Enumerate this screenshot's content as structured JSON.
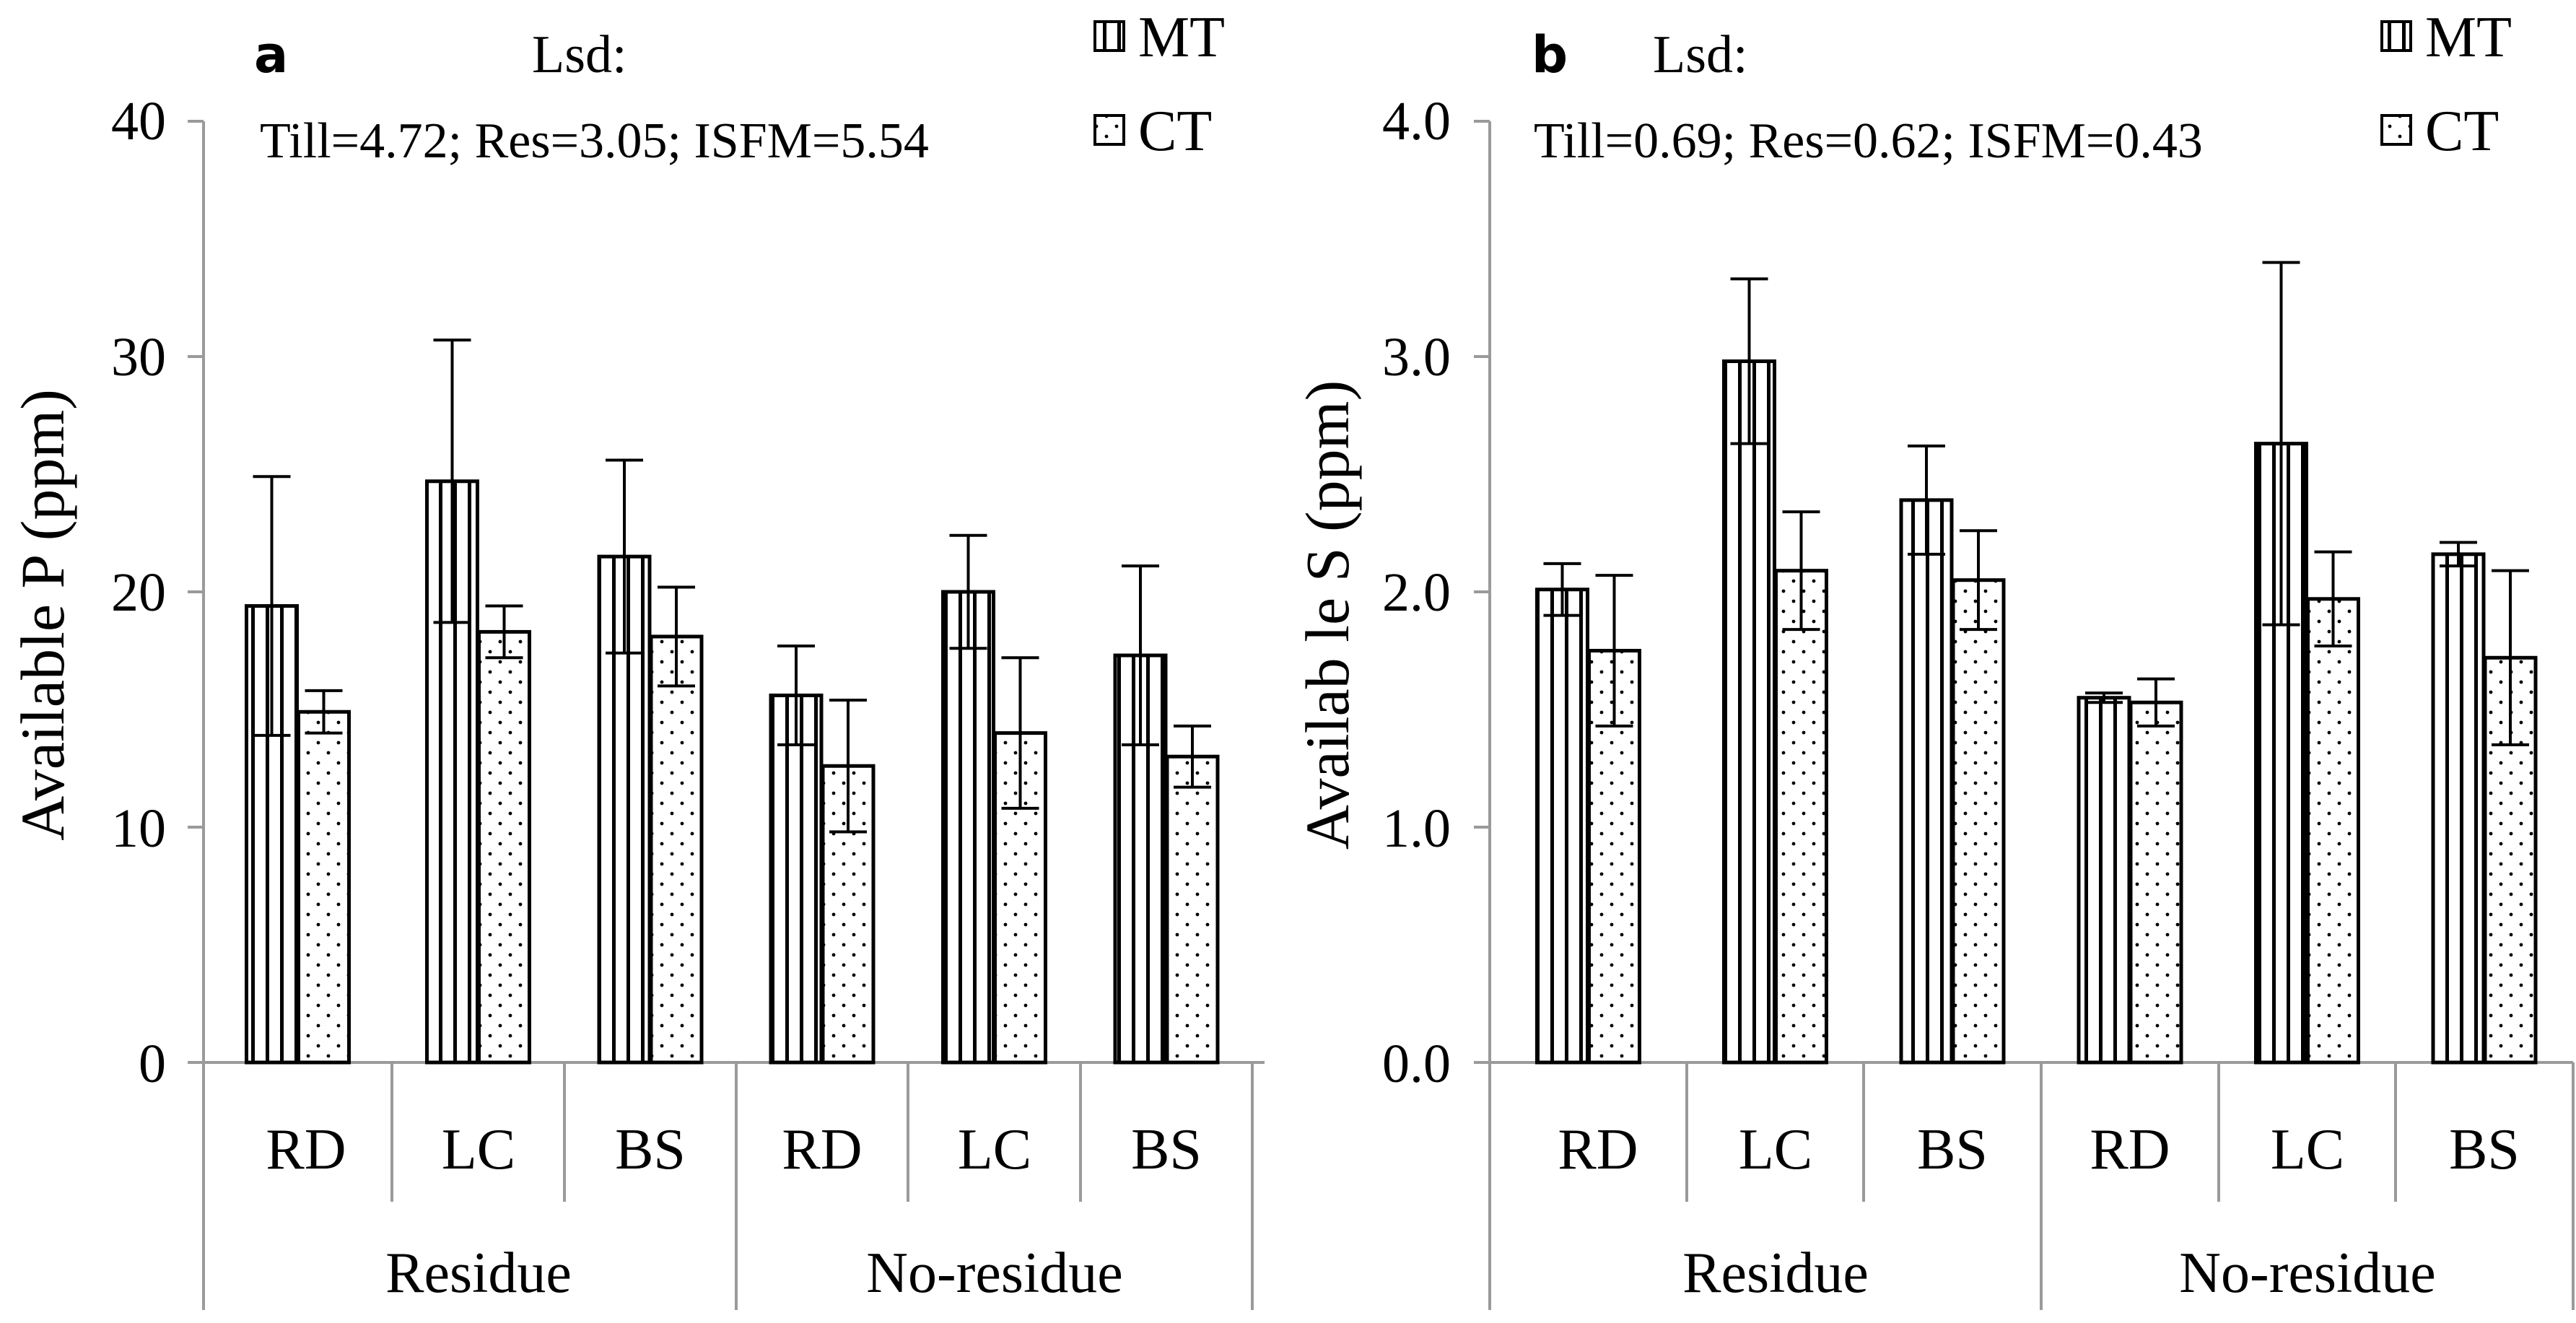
{
  "figure": {
    "panels": [
      {
        "letter": "a",
        "lsd_heading": "Lsd:",
        "lsd_values": "Till=4.72;  Res=3.05; ISFM=5.54",
        "ylabel": "Available  P (ppm)",
        "ytick_labels": [
          "0",
          "10",
          "20",
          "30",
          "40"
        ],
        "legend": [
          "MT",
          "CT"
        ],
        "group_labels": [
          "Residue",
          "No-residue"
        ],
        "category_labels": [
          "RD",
          "LC",
          "BS",
          "RD",
          "LC",
          "BS"
        ]
      },
      {
        "letter": "b",
        "lsd_heading": "Lsd:",
        "lsd_values": "Till=0.69;  Res=0.62; ISFM=0.43",
        "ylabel": "Availab le  S (ppm)",
        "ytick_labels": [
          "0.0",
          "1.0",
          "2.0",
          "3.0",
          "4.0"
        ],
        "legend": [
          "MT",
          "CT"
        ],
        "group_labels": [
          "Residue",
          "No-residue"
        ],
        "category_labels": [
          "RD",
          "LC",
          "BS",
          "RD",
          "LC",
          "BS"
        ]
      }
    ]
  },
  "chart_data": [
    {
      "type": "bar",
      "title": "a",
      "ylabel": "Available  P (ppm)",
      "ylim": [
        0,
        40
      ],
      "yticks": [
        0,
        10,
        20,
        30,
        40
      ],
      "grid": false,
      "legend_position": "top-right",
      "groups": [
        "Residue",
        "No-residue"
      ],
      "categories": [
        "RD",
        "LC",
        "BS",
        "RD",
        "LC",
        "BS"
      ],
      "series": [
        {
          "name": "MT",
          "pattern": "vertical-lines",
          "values": [
            19.4,
            24.7,
            21.5,
            15.6,
            20.0,
            17.3
          ],
          "errors": [
            5.5,
            6.0,
            4.1,
            2.1,
            2.4,
            3.8
          ]
        },
        {
          "name": "CT",
          "pattern": "dots",
          "values": [
            14.9,
            18.3,
            18.1,
            12.6,
            14.0,
            13.0
          ],
          "errors": [
            0.9,
            1.1,
            2.1,
            2.8,
            3.2,
            1.3
          ]
        }
      ]
    },
    {
      "type": "bar",
      "title": "b",
      "ylabel": "Availab le  S (ppm)",
      "ylim": [
        0,
        4.0
      ],
      "yticks": [
        0.0,
        1.0,
        2.0,
        3.0,
        4.0
      ],
      "grid": false,
      "legend_position": "top-right",
      "groups": [
        "Residue",
        "No-residue"
      ],
      "categories": [
        "RD",
        "LC",
        "BS",
        "RD",
        "LC",
        "BS"
      ],
      "series": [
        {
          "name": "MT",
          "pattern": "vertical-lines",
          "values": [
            2.01,
            2.98,
            2.39,
            1.55,
            2.63,
            2.16
          ],
          "errors": [
            0.11,
            0.35,
            0.23,
            0.02,
            0.77,
            0.05
          ]
        },
        {
          "name": "CT",
          "pattern": "dots",
          "values": [
            1.75,
            2.09,
            2.05,
            1.53,
            1.97,
            1.72
          ],
          "errors": [
            0.32,
            0.25,
            0.21,
            0.1,
            0.2,
            0.37
          ]
        }
      ]
    }
  ]
}
